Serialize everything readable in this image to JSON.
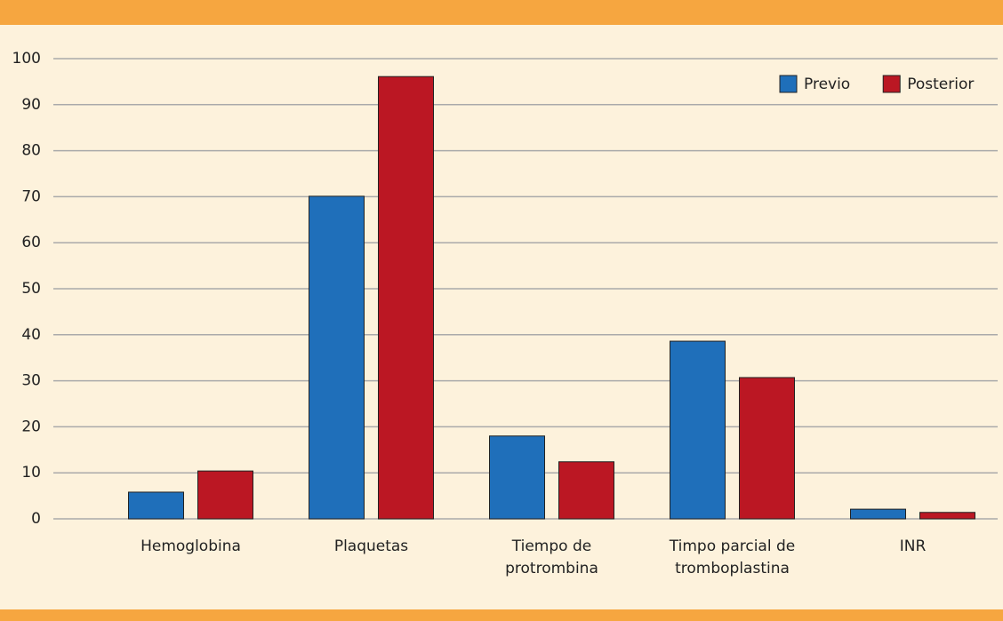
{
  "chart_data": {
    "type": "bar",
    "categories": [
      "Hemoglobina",
      "Plaquetas",
      "Tiempo de protrombina",
      "Timpo parcial de tromboplastina",
      "INR"
    ],
    "series": [
      {
        "name": "Previo",
        "color": "#1f6fba",
        "values": [
          5.8,
          70.1,
          18,
          38.6,
          2.1
        ]
      },
      {
        "name": "Posterior",
        "color": "#bb1723",
        "values": [
          10.4,
          96.1,
          12.4,
          30.7,
          1.4
        ]
      }
    ],
    "ylim": [
      0,
      100
    ],
    "yticks": [
      0,
      10,
      20,
      30,
      40,
      50,
      60,
      70,
      80,
      90,
      100
    ],
    "grid": true,
    "legend": "top-right"
  }
}
